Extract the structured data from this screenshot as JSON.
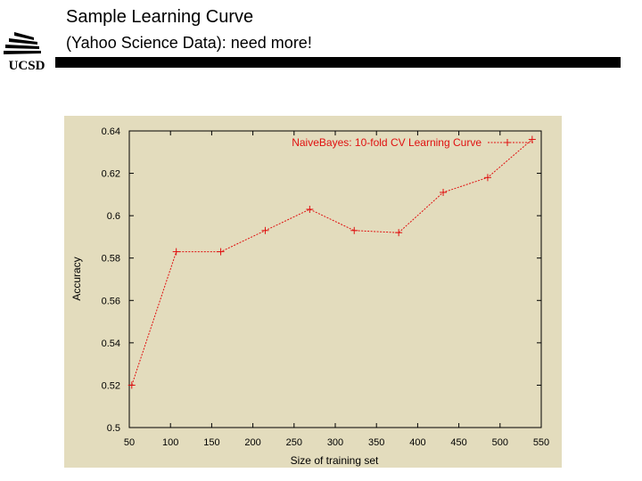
{
  "slide": {
    "title": "Sample Learning Curve",
    "subtitle": "(Yahoo Science Data): need more!",
    "logo_text": "UCSD"
  },
  "colors": {
    "chart_background": "#e3dcbd",
    "series": "#e01010",
    "axis": "#000000",
    "rule": "#000000"
  },
  "chart_data": {
    "type": "line",
    "title": "",
    "xlabel": "Size of training set",
    "ylabel": "Accuracy",
    "xlim": [
      50,
      550
    ],
    "ylim": [
      0.5,
      0.64
    ],
    "x_ticks": [
      50,
      100,
      150,
      200,
      250,
      300,
      350,
      400,
      450,
      500,
      550
    ],
    "y_ticks": [
      0.5,
      0.52,
      0.54,
      0.56,
      0.58,
      0.6,
      0.62,
      0.64
    ],
    "x_tick_labels": [
      "50",
      "100",
      "150",
      "200",
      "250",
      "300",
      "350",
      "400",
      "450",
      "500",
      "550"
    ],
    "y_tick_labels": [
      "0.5",
      "0.52",
      "0.54",
      "0.56",
      "0.58",
      "0.6",
      "0.62",
      "0.64"
    ],
    "grid": false,
    "legend_position": "top-right",
    "series": [
      {
        "name": "NaiveBayes: 10-fold CV Learning Curve",
        "x": [
          53,
          107,
          161,
          215,
          269,
          323,
          377,
          431,
          485,
          539
        ],
        "y": [
          0.52,
          0.583,
          0.583,
          0.593,
          0.603,
          0.593,
          0.592,
          0.611,
          0.618,
          0.636
        ]
      }
    ]
  }
}
